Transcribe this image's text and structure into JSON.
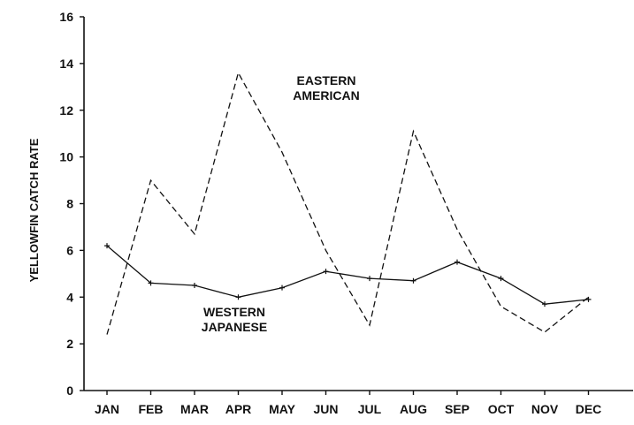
{
  "chart_data": {
    "type": "line",
    "title": "",
    "xlabel": "",
    "ylabel": "YELLOWFIN CATCH RATE",
    "categories": [
      "JAN",
      "FEB",
      "MAR",
      "APR",
      "MAY",
      "JUN",
      "JUL",
      "AUG",
      "SEP",
      "OCT",
      "NOV",
      "DEC"
    ],
    "ylim": [
      0,
      16
    ],
    "yticks": [
      0,
      2,
      4,
      6,
      8,
      10,
      12,
      14,
      16
    ],
    "grid": false,
    "series": [
      {
        "name": "EASTERN AMERICAN",
        "label_lines": [
          "EASTERN",
          "AMERICAN"
        ],
        "style": "dashed",
        "markers": false,
        "values": [
          2.4,
          9.0,
          6.7,
          13.6,
          10.2,
          6.0,
          2.8,
          11.1,
          6.9,
          3.6,
          2.5,
          4.0
        ]
      },
      {
        "name": "WESTERN JAPANESE",
        "label_lines": [
          "WESTERN",
          "JAPANESE"
        ],
        "style": "solid",
        "markers": true,
        "values": [
          6.2,
          4.6,
          4.5,
          4.0,
          4.4,
          5.1,
          4.8,
          4.7,
          5.5,
          4.8,
          3.7,
          3.9
        ]
      }
    ]
  }
}
